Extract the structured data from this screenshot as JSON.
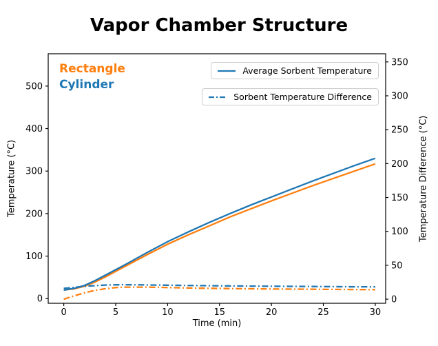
{
  "title": "Vapor Chamber Structure",
  "annotations": {
    "rectangle": {
      "label": "Rectangle",
      "color": "#ff7f0e"
    },
    "cylinder": {
      "label": "Cylinder",
      "color": "#1f77b4"
    }
  },
  "legends": [
    {
      "label": "Average Sorbent Temperature",
      "line_style": "solid",
      "color": "#1f77b4"
    },
    {
      "label": "Sorbent Temperature Difference",
      "line_style": "dashdot",
      "color": "#1f77b4"
    }
  ],
  "chart_data": {
    "type": "line",
    "title": "Vapor Chamber Structure",
    "xlabel": "Time (min)",
    "ylabel_left": "Temperature (°C)",
    "ylabel_right": "Temperature Difference (°C)",
    "grid": false,
    "legend_position": "upper right (two stacked boxes)",
    "x_ticks": [
      0,
      5,
      10,
      15,
      20,
      25,
      30
    ],
    "y_ticks_left": [
      0,
      100,
      200,
      300,
      400,
      500
    ],
    "y_ticks_right": [
      0,
      50,
      100,
      150,
      200,
      250,
      300,
      350
    ],
    "xlim": [
      -1.5,
      31
    ],
    "ylim_left": [
      -11,
      576
    ],
    "ylim_right": [
      -6,
      362
    ],
    "x": [
      0,
      1,
      2,
      3,
      4,
      5,
      6,
      8,
      10,
      12,
      14,
      16,
      18,
      20,
      22,
      24,
      26,
      28,
      30
    ],
    "series": [
      {
        "name": "Rectangle - Average Sorbent Temperature",
        "axis": "left",
        "style": "solid",
        "color": "#ff7f0e",
        "values": [
          20,
          23,
          29,
          39,
          51,
          64,
          77,
          103,
          128,
          150,
          171,
          192,
          211,
          230,
          248,
          266,
          283,
          300,
          317
        ]
      },
      {
        "name": "Cylinder - Average Sorbent Temperature",
        "axis": "left",
        "style": "solid",
        "color": "#1f77b4",
        "values": [
          20,
          24,
          31,
          42,
          55,
          68,
          81,
          108,
          134,
          157,
          179,
          200,
          220,
          239,
          258,
          277,
          295,
          313,
          330
        ]
      },
      {
        "name": "Rectangle - Sorbent Temperature Difference",
        "axis": "right",
        "style": "dashdot",
        "color": "#ff7f0e",
        "values": [
          0,
          5,
          9.5,
          13,
          15.5,
          17.2,
          17.8,
          17.8,
          17.2,
          16.6,
          16.1,
          15.7,
          15.3,
          15,
          14.8,
          14.6,
          14.4,
          14.2,
          14
        ]
      },
      {
        "name": "Cylinder - Sorbent Temperature Difference",
        "axis": "right",
        "style": "dashdot",
        "color": "#1f77b4",
        "values": [
          16,
          17.5,
          19,
          20,
          20.8,
          21.2,
          21.3,
          21,
          20.6,
          20.2,
          19.9,
          19.6,
          19.3,
          19.1,
          18.9,
          18.7,
          18.5,
          18.3,
          18.2
        ]
      }
    ]
  }
}
